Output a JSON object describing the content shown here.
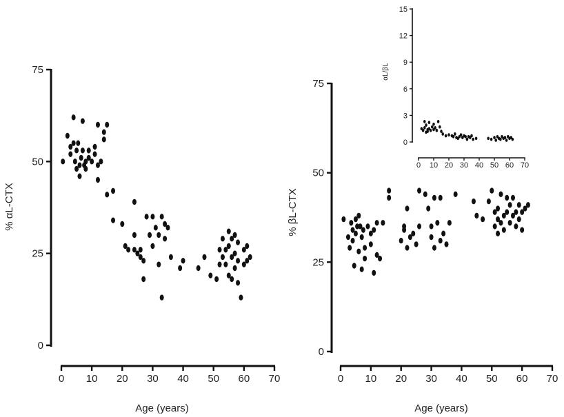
{
  "chart_data": [
    {
      "type": "scatter",
      "id": "alpha",
      "title": "",
      "xlabel": "Age (years)",
      "ylabel": "% αL-CTX",
      "xlim": [
        0,
        70
      ],
      "ylim": [
        0,
        75
      ],
      "xticks": [
        0,
        10,
        20,
        30,
        40,
        50,
        60,
        70
      ],
      "yticks": [
        0,
        25,
        50,
        75
      ],
      "grid": false,
      "points": [
        [
          0.5,
          50
        ],
        [
          2,
          57
        ],
        [
          3,
          54
        ],
        [
          3,
          52
        ],
        [
          4,
          62
        ],
        [
          4,
          55
        ],
        [
          4.5,
          50
        ],
        [
          5,
          48
        ],
        [
          5,
          53
        ],
        [
          5.5,
          55
        ],
        [
          6,
          49
        ],
        [
          6,
          46
        ],
        [
          6.5,
          51
        ],
        [
          7,
          61
        ],
        [
          7,
          53
        ],
        [
          7.5,
          49
        ],
        [
          8,
          50
        ],
        [
          8,
          48
        ],
        [
          9,
          51
        ],
        [
          9,
          53
        ],
        [
          10,
          50
        ],
        [
          11,
          54
        ],
        [
          11,
          52
        ],
        [
          12,
          49
        ],
        [
          12,
          45
        ],
        [
          12,
          60
        ],
        [
          13,
          50
        ],
        [
          14,
          56
        ],
        [
          14,
          58
        ],
        [
          15,
          60
        ],
        [
          15,
          41
        ],
        [
          17,
          42
        ],
        [
          17,
          34
        ],
        [
          20,
          33
        ],
        [
          21,
          27
        ],
        [
          22,
          26
        ],
        [
          24,
          39
        ],
        [
          24,
          30
        ],
        [
          24,
          26
        ],
        [
          25,
          25
        ],
        [
          26,
          26
        ],
        [
          26,
          24
        ],
        [
          27,
          18
        ],
        [
          27,
          23
        ],
        [
          28,
          35
        ],
        [
          29,
          30
        ],
        [
          30,
          35
        ],
        [
          30,
          27
        ],
        [
          31,
          32
        ],
        [
          32,
          22
        ],
        [
          32,
          30
        ],
        [
          33,
          13
        ],
        [
          33,
          35
        ],
        [
          34,
          29
        ],
        [
          34,
          33
        ],
        [
          35,
          32
        ],
        [
          36,
          24
        ],
        [
          39,
          21
        ],
        [
          40,
          23
        ],
        [
          45,
          21
        ],
        [
          47,
          24
        ],
        [
          49,
          19
        ],
        [
          51,
          18
        ],
        [
          52,
          22
        ],
        [
          52,
          26
        ],
        [
          53,
          24
        ],
        [
          53,
          29
        ],
        [
          54,
          22
        ],
        [
          54,
          26
        ],
        [
          55,
          31
        ],
        [
          55,
          19
        ],
        [
          55,
          27
        ],
        [
          56,
          24
        ],
        [
          56,
          18
        ],
        [
          56,
          29
        ],
        [
          57,
          21
        ],
        [
          57,
          25
        ],
        [
          57,
          30
        ],
        [
          58,
          17
        ],
        [
          58,
          23
        ],
        [
          58,
          28
        ],
        [
          59,
          13
        ],
        [
          60,
          26
        ],
        [
          60,
          22
        ],
        [
          61,
          27
        ],
        [
          61,
          23
        ],
        [
          62,
          24
        ]
      ]
    },
    {
      "type": "scatter",
      "id": "beta",
      "title": "",
      "xlabel": "Age (years)",
      "ylabel": "% βL-CTX",
      "xlim": [
        0,
        70
      ],
      "ylim": [
        0,
        75
      ],
      "xticks": [
        0,
        10,
        20,
        30,
        40,
        50,
        60,
        70
      ],
      "yticks": [
        0,
        25,
        50,
        75
      ],
      "grid": false,
      "points": [
        [
          1,
          37
        ],
        [
          2.5,
          32
        ],
        [
          3,
          29
        ],
        [
          3.5,
          36
        ],
        [
          4,
          34
        ],
        [
          4,
          31
        ],
        [
          4.5,
          24
        ],
        [
          5,
          33
        ],
        [
          5,
          37
        ],
        [
          5.5,
          35
        ],
        [
          6,
          28
        ],
        [
          6,
          38
        ],
        [
          6.5,
          35
        ],
        [
          7,
          32
        ],
        [
          7,
          23
        ],
        [
          7.5,
          34
        ],
        [
          8,
          29
        ],
        [
          8,
          26
        ],
        [
          9,
          35
        ],
        [
          10,
          30
        ],
        [
          10,
          33
        ],
        [
          11,
          22
        ],
        [
          11,
          34
        ],
        [
          12,
          36
        ],
        [
          12,
          27
        ],
        [
          13,
          26
        ],
        [
          14,
          36
        ],
        [
          16,
          43
        ],
        [
          16,
          45
        ],
        [
          20,
          31
        ],
        [
          21,
          35
        ],
        [
          21,
          34
        ],
        [
          22,
          29
        ],
        [
          22,
          40
        ],
        [
          23,
          32
        ],
        [
          24,
          33
        ],
        [
          25,
          30
        ],
        [
          26,
          45
        ],
        [
          26,
          35
        ],
        [
          28,
          44
        ],
        [
          29,
          40
        ],
        [
          30,
          35
        ],
        [
          30,
          32
        ],
        [
          31,
          43
        ],
        [
          31,
          29
        ],
        [
          32,
          36
        ],
        [
          33,
          43
        ],
        [
          33,
          31
        ],
        [
          34,
          33
        ],
        [
          35,
          30
        ],
        [
          36,
          36
        ],
        [
          38,
          44
        ],
        [
          44,
          42
        ],
        [
          45,
          38
        ],
        [
          47,
          37
        ],
        [
          49,
          42
        ],
        [
          50,
          45
        ],
        [
          51,
          39
        ],
        [
          51,
          35
        ],
        [
          52,
          40
        ],
        [
          52,
          33
        ],
        [
          52,
          37
        ],
        [
          53,
          44
        ],
        [
          53,
          36
        ],
        [
          54,
          38
        ],
        [
          54,
          34
        ],
        [
          55,
          43
        ],
        [
          55,
          39
        ],
        [
          56,
          36
        ],
        [
          56,
          41
        ],
        [
          57,
          38
        ],
        [
          57,
          43
        ],
        [
          58,
          35
        ],
        [
          58,
          39
        ],
        [
          59,
          37
        ],
        [
          59,
          41
        ],
        [
          60,
          34
        ],
        [
          60,
          39
        ],
        [
          61,
          40
        ],
        [
          62,
          41
        ]
      ]
    },
    {
      "type": "scatter",
      "id": "ratio",
      "title": "",
      "xlabel": "",
      "ylabel": "αL/βL",
      "xlim": [
        0,
        70
      ],
      "ylim": [
        0,
        15
      ],
      "xticks": [
        0,
        10,
        20,
        30,
        40,
        50,
        60,
        70
      ],
      "yticks": [
        0,
        3,
        6,
        9,
        12,
        15
      ],
      "grid": false,
      "points": [
        [
          2,
          1.5
        ],
        [
          3,
          1.3
        ],
        [
          4,
          2.3
        ],
        [
          4,
          1.6
        ],
        [
          5,
          1.1
        ],
        [
          5,
          1.9
        ],
        [
          6,
          1.4
        ],
        [
          6,
          1.2
        ],
        [
          7,
          2.2
        ],
        [
          7,
          1.5
        ],
        [
          8,
          1.3
        ],
        [
          9,
          1.7
        ],
        [
          10,
          1.4
        ],
        [
          10,
          2
        ],
        [
          11,
          1.6
        ],
        [
          12,
          1.3
        ],
        [
          13,
          2.3
        ],
        [
          14,
          1.7
        ],
        [
          15,
          1.2
        ],
        [
          16,
          0.9
        ],
        [
          18,
          0.7
        ],
        [
          20,
          0.8
        ],
        [
          22,
          0.7
        ],
        [
          23,
          0.6
        ],
        [
          24,
          0.9
        ],
        [
          25,
          0.5
        ],
        [
          26,
          0.4
        ],
        [
          27,
          0.6
        ],
        [
          28,
          0.8
        ],
        [
          29,
          0.5
        ],
        [
          30,
          0.7
        ],
        [
          31,
          0.6
        ],
        [
          32,
          0.3
        ],
        [
          33,
          0.6
        ],
        [
          34,
          0.5
        ],
        [
          35,
          0.7
        ],
        [
          36,
          0.3
        ],
        [
          38,
          0.4
        ],
        [
          46,
          0.4
        ],
        [
          48,
          0.3
        ],
        [
          50,
          0.5
        ],
        [
          51,
          0.2
        ],
        [
          52,
          0.6
        ],
        [
          53,
          0.4
        ],
        [
          54,
          0.3
        ],
        [
          55,
          0.6
        ],
        [
          56,
          0.4
        ],
        [
          57,
          0.5
        ],
        [
          58,
          0.2
        ],
        [
          59,
          0.6
        ],
        [
          60,
          0.4
        ],
        [
          61,
          0.5
        ],
        [
          62,
          0.3
        ]
      ]
    }
  ]
}
